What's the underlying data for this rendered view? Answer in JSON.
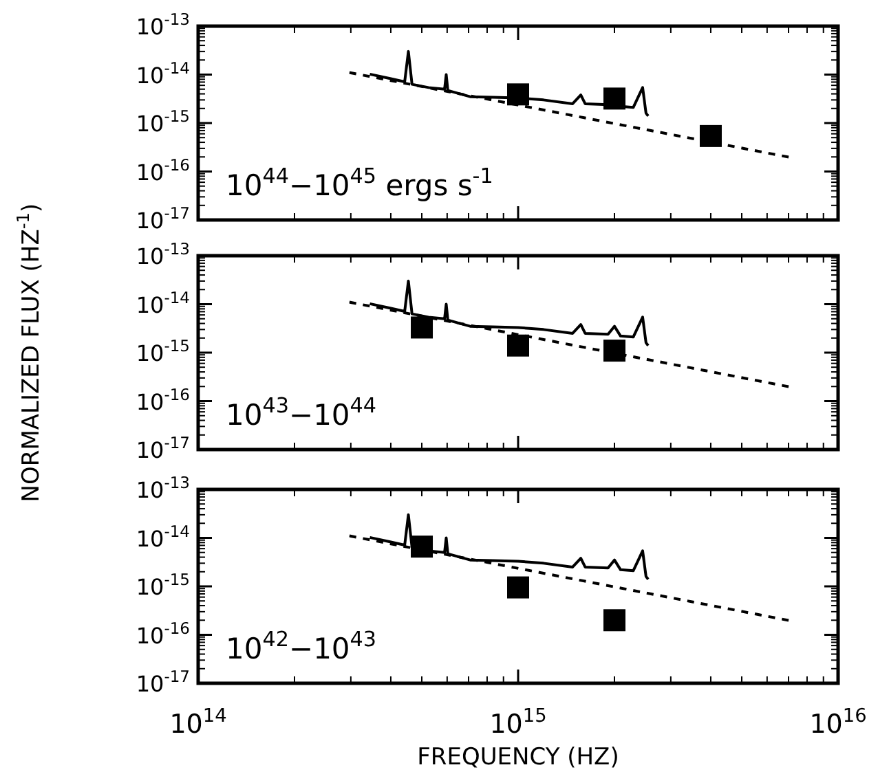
{
  "chart_data": [
    {
      "type": "line",
      "log": "xy",
      "xlim": [
        100000000000000.0,
        1e+16
      ],
      "ylim": [
        1e-17,
        1e-13
      ],
      "xticks": [
        100000000000000.0,
        1000000000000000.0,
        1e+16
      ],
      "yticks": [
        {
          "value": 1e-17,
          "label": "10$^{-17}$"
        },
        {
          "value": 1e-16,
          "label": "10$^{-16}$"
        },
        {
          "value": 1e-15,
          "label": "10$^{-15}$"
        },
        {
          "value": 1e-14,
          "label": "10$^{-14}$"
        },
        {
          "value": 1e-13,
          "label": "10$^{-13}$"
        }
      ],
      "tick_labels": "y",
      "annotations": [
        "10$^{44}$−10$^{45}$ ergs s$^{-1}$"
      ],
      "series": [
        {
          "color": "#000000",
          "line_style": "solid",
          "x": [
            344000000000000.0,
            398000000000000.0,
            442000000000000.0,
            454000000000000.0,
            466000000000000.0,
            525000000000000.0,
            589000000000000.0,
            596000000000000.0,
            603000000000000.0,
            708000000000000.0,
            832000000000000.0,
            1000000000000000.0,
            1200000000000000.0,
            1480000000000000.0,
            1570000000000000.0,
            1620000000000000.0,
            1910000000000000.0,
            2000000000000000.0,
            2090000000000000.0,
            2290000000000000.0,
            2450000000000000.0,
            2510000000000000.0,
            2550000000000000.0
          ],
          "values": [
            1.02e-14,
            8.3e-15,
            7.1e-15,
            3e-14,
            6.3e-15,
            5.4e-15,
            5e-15,
            1e-14,
            4.7e-15,
            3.5e-15,
            3.4e-15,
            3.3e-15,
            3e-15,
            2.5e-15,
            3.8e-15,
            2.5e-15,
            2.4e-15,
            3.5e-15,
            2.2e-15,
            2.1e-15,
            5.4e-15,
            1.6e-15,
            1.4e-15
          ]
        },
        {
          "color": "#000000",
          "line_style": "dashed",
          "x": [
            297000000000000.0,
            7100000000000000.0
          ],
          "values": [
            1.1e-14,
            1.95e-16
          ]
        },
        {
          "type": "scatter",
          "color": "#000000",
          "marker": "square",
          "x": [
            1000000000000000.0,
            2000000000000000.0,
            4000000000000000.0
          ],
          "values": [
            3.9e-15,
            3.2e-15,
            5.4e-16
          ]
        }
      ]
    },
    {
      "type": "line",
      "log": "xy",
      "xlim": [
        100000000000000.0,
        1e+16
      ],
      "ylim": [
        1e-17,
        1e-13
      ],
      "xticks": [
        100000000000000.0,
        1000000000000000.0,
        1e+16
      ],
      "yticks": [
        {
          "value": 1e-17,
          "label": "10$^{-17}$"
        },
        {
          "value": 1e-16,
          "label": "10$^{-16}$"
        },
        {
          "value": 1e-15,
          "label": "10$^{-15}$"
        },
        {
          "value": 1e-14,
          "label": "10$^{-14}$"
        },
        {
          "value": 1e-13,
          "label": "10$^{-13}$"
        }
      ],
      "tick_labels": "y",
      "ylabel": "NORMALIZED FLUX (HZ$^{-1}$)",
      "annotations": [
        "10$^{43}$−10$^{44}$"
      ],
      "series": [
        {
          "color": "#000000",
          "line_style": "solid",
          "x": [
            344000000000000.0,
            398000000000000.0,
            442000000000000.0,
            454000000000000.0,
            466000000000000.0,
            525000000000000.0,
            589000000000000.0,
            596000000000000.0,
            603000000000000.0,
            708000000000000.0,
            832000000000000.0,
            1000000000000000.0,
            1200000000000000.0,
            1480000000000000.0,
            1570000000000000.0,
            1620000000000000.0,
            1910000000000000.0,
            2000000000000000.0,
            2090000000000000.0,
            2290000000000000.0,
            2450000000000000.0,
            2510000000000000.0,
            2550000000000000.0
          ],
          "values": [
            1.02e-14,
            8.3e-15,
            7.1e-15,
            3e-14,
            6.3e-15,
            5.4e-15,
            5e-15,
            1e-14,
            4.7e-15,
            3.5e-15,
            3.4e-15,
            3.3e-15,
            3e-15,
            2.5e-15,
            3.8e-15,
            2.5e-15,
            2.4e-15,
            3.5e-15,
            2.2e-15,
            2.1e-15,
            5.4e-15,
            1.6e-15,
            1.4e-15
          ]
        },
        {
          "color": "#000000",
          "line_style": "dashed",
          "x": [
            297000000000000.0,
            7100000000000000.0
          ],
          "values": [
            1.1e-14,
            1.95e-16
          ]
        },
        {
          "type": "scatter",
          "color": "#000000",
          "marker": "square",
          "x": [
            500000000000000.0,
            1000000000000000.0,
            2000000000000000.0
          ],
          "values": [
            3.3e-15,
            1.4e-15,
            1.1e-15
          ]
        }
      ]
    },
    {
      "type": "line",
      "log": "xy",
      "xlim": [
        100000000000000.0,
        1e+16
      ],
      "ylim": [
        1e-17,
        1e-13
      ],
      "xticks": [
        {
          "value": 100000000000000.0,
          "label": "10$^{14}$"
        },
        {
          "value": 1000000000000000.0,
          "label": "10$^{15}$"
        },
        {
          "value": 1e+16,
          "label": "10$^{16}$"
        }
      ],
      "yticks": [
        {
          "value": 1e-17,
          "label": "10$^{-17}$"
        },
        {
          "value": 1e-16,
          "label": "10$^{-16}$"
        },
        {
          "value": 1e-15,
          "label": "10$^{-15}$"
        },
        {
          "value": 1e-14,
          "label": "10$^{-14}$"
        },
        {
          "value": 1e-13,
          "label": "10$^{-13}$"
        }
      ],
      "xlabel": "FREQUENCY (HZ)",
      "annotations": [
        "10$^{42}$−10$^{43}$"
      ],
      "series": [
        {
          "color": "#000000",
          "line_style": "solid",
          "x": [
            344000000000000.0,
            398000000000000.0,
            442000000000000.0,
            454000000000000.0,
            466000000000000.0,
            525000000000000.0,
            589000000000000.0,
            596000000000000.0,
            603000000000000.0,
            708000000000000.0,
            832000000000000.0,
            1000000000000000.0,
            1200000000000000.0,
            1480000000000000.0,
            1570000000000000.0,
            1620000000000000.0,
            1910000000000000.0,
            2000000000000000.0,
            2090000000000000.0,
            2290000000000000.0,
            2450000000000000.0,
            2510000000000000.0,
            2550000000000000.0
          ],
          "values": [
            1.02e-14,
            8.3e-15,
            7.1e-15,
            3e-14,
            6.3e-15,
            5.4e-15,
            5e-15,
            1e-14,
            4.7e-15,
            3.5e-15,
            3.4e-15,
            3.3e-15,
            3e-15,
            2.5e-15,
            3.8e-15,
            2.5e-15,
            2.4e-15,
            3.5e-15,
            2.2e-15,
            2.1e-15,
            5.4e-15,
            1.6e-15,
            1.4e-15
          ]
        },
        {
          "color": "#000000",
          "line_style": "dashed",
          "x": [
            297000000000000.0,
            7100000000000000.0
          ],
          "values": [
            1.1e-14,
            1.95e-16
          ]
        },
        {
          "type": "scatter",
          "color": "#000000",
          "marker": "square",
          "x": [
            500000000000000.0,
            1000000000000000.0,
            2000000000000000.0
          ],
          "values": [
            6.6e-15,
            9.5e-16,
            2e-16
          ]
        }
      ]
    }
  ]
}
